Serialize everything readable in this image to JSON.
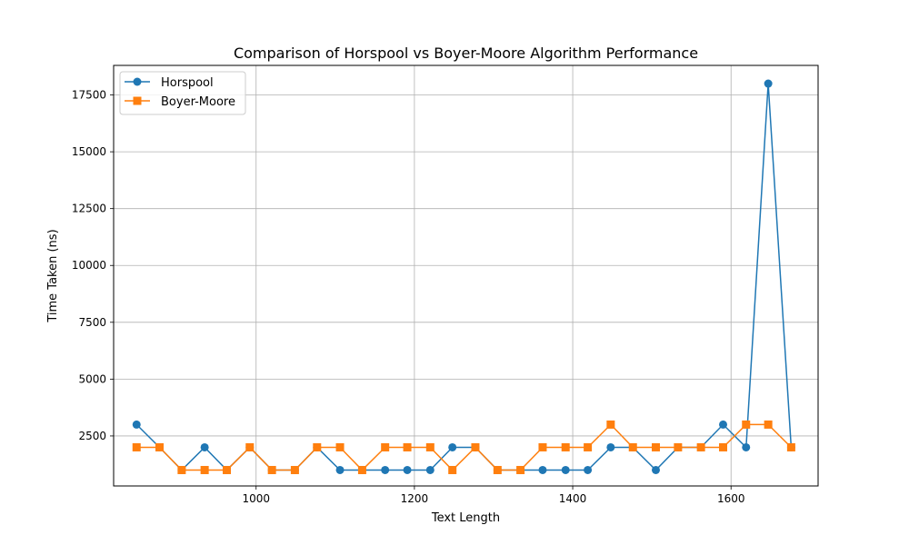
{
  "chart_data": {
    "type": "line",
    "title": "Comparison of Horspool vs Boyer-Moore Algorithm Performance",
    "xlabel": "Text Length",
    "ylabel": "Time Taken (ns)",
    "xlim": [
      820,
      1710
    ],
    "ylim": [
      300,
      18800
    ],
    "x_ticks": [
      1000,
      1200,
      1400,
      1600
    ],
    "y_ticks": [
      2500,
      5000,
      7500,
      10000,
      12500,
      15000,
      17500
    ],
    "grid": true,
    "legend_position": "top-left",
    "x": [
      849,
      878,
      906,
      935,
      963,
      992,
      1020,
      1049,
      1077,
      1106,
      1134,
      1163,
      1191,
      1220,
      1248,
      1277,
      1305,
      1334,
      1362,
      1391,
      1419,
      1448,
      1476,
      1505,
      1533,
      1562,
      1590,
      1619,
      1647,
      1676
    ],
    "series": [
      {
        "name": "Horspool",
        "marker": "circle",
        "color": "#1f77b4",
        "values": [
          3000,
          2000,
          1000,
          2000,
          1000,
          2000,
          1000,
          1000,
          2000,
          1000,
          1000,
          1000,
          1000,
          1000,
          2000,
          2000,
          1000,
          1000,
          1000,
          1000,
          1000,
          2000,
          2000,
          1000,
          2000,
          2000,
          3000,
          2000,
          18000,
          2000
        ]
      },
      {
        "name": "Boyer-Moore",
        "marker": "square",
        "color": "#ff7f0e",
        "values": [
          2000,
          2000,
          1000,
          1000,
          1000,
          2000,
          1000,
          1000,
          2000,
          2000,
          1000,
          2000,
          2000,
          2000,
          1000,
          2000,
          1000,
          1000,
          2000,
          2000,
          2000,
          3000,
          2000,
          2000,
          2000,
          2000,
          2000,
          3000,
          3000,
          2000
        ]
      }
    ]
  }
}
